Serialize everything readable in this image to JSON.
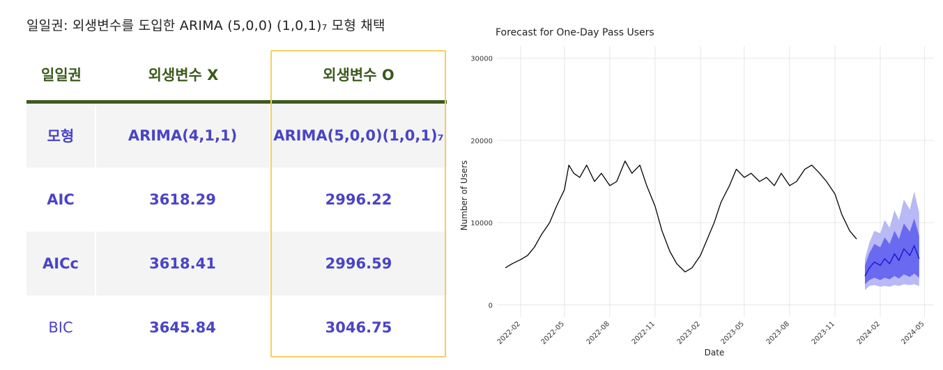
{
  "headline": "일일권: 외생변수를 도입한 ARIMA (5,0,0) (1,0,1)₇ 모형 채택",
  "table": {
    "headers": [
      "일일권",
      "외생변수 X",
      "외생변수 O"
    ],
    "rows": [
      {
        "label": "모형",
        "without": "ARIMA(4,1,1)",
        "with": "ARIMA(5,0,0)(1,0,1)₇"
      },
      {
        "label": "AIC",
        "without": "3618.29",
        "with": "2996.22"
      },
      {
        "label": "AICc",
        "without": "3618.41",
        "with": "2996.59"
      },
      {
        "label": "BIC",
        "without": "3645.84",
        "with": "3046.75"
      }
    ]
  },
  "colors": {
    "header_text": "#3b5a1c",
    "header_rule": "#3e5a1d",
    "value_text": "#4a44c6",
    "highlight_border": "#f2cf63",
    "forecast_line": "#1f1fd6",
    "band_80": "#6a6af0",
    "band_95": "#b9b9f5"
  },
  "chart_data": {
    "type": "line",
    "title": "Forecast for One-Day Pass Users",
    "xlabel": "Date",
    "ylabel": "Number of Users",
    "y_ticks": [
      "0",
      "10000",
      "20000",
      "30000"
    ],
    "x_ticks": [
      "2022-02",
      "2022-05",
      "2022-08",
      "2022-11",
      "2023-02",
      "2023-05",
      "2023-08",
      "2023-11",
      "2024-02",
      "2024-05"
    ],
    "xlim": [
      "2021-12-15",
      "2024-05-20"
    ],
    "ylim": [
      -1500,
      31500
    ],
    "grid": true,
    "series": [
      {
        "role": "history",
        "x": [
          "2022-01-01",
          "2022-01-15",
          "2022-02-01",
          "2022-02-15",
          "2022-03-01",
          "2022-03-15",
          "2022-04-01",
          "2022-04-15",
          "2022-05-01",
          "2022-05-10",
          "2022-05-20",
          "2022-06-01",
          "2022-06-15",
          "2022-07-01",
          "2022-07-15",
          "2022-08-01",
          "2022-08-15",
          "2022-09-01",
          "2022-09-15",
          "2022-10-01",
          "2022-10-15",
          "2022-11-01",
          "2022-11-15",
          "2022-12-01",
          "2022-12-15",
          "2023-01-01",
          "2023-01-15",
          "2023-02-01",
          "2023-02-15",
          "2023-03-01",
          "2023-03-15",
          "2023-04-01",
          "2023-04-15",
          "2023-05-01",
          "2023-05-15",
          "2023-06-01",
          "2023-06-15",
          "2023-07-01",
          "2023-07-15",
          "2023-08-01",
          "2023-08-15",
          "2023-09-01",
          "2023-09-15",
          "2023-10-01",
          "2023-10-15",
          "2023-11-01",
          "2023-11-15",
          "2023-12-01",
          "2023-12-15"
        ],
        "y": [
          4500,
          5000,
          5500,
          6000,
          7000,
          8500,
          10000,
          12000,
          14000,
          17000,
          16000,
          15500,
          17000,
          15000,
          16000,
          14500,
          15000,
          17500,
          16000,
          17000,
          14500,
          12000,
          9000,
          6500,
          5000,
          4000,
          4500,
          6000,
          8000,
          10000,
          12500,
          14500,
          16500,
          15500,
          16000,
          15000,
          15500,
          14500,
          16000,
          14500,
          15000,
          16500,
          17000,
          16000,
          15000,
          13500,
          11000,
          9000,
          8000
        ]
      },
      {
        "name": "forecast",
        "x": [
          "2024-01-01",
          "2024-01-10",
          "2024-01-20",
          "2024-02-01",
          "2024-02-10",
          "2024-02-20",
          "2024-03-01",
          "2024-03-10",
          "2024-03-20",
          "2024-04-01",
          "2024-04-10",
          "2024-04-20"
        ],
        "y": [
          3500,
          4500,
          5200,
          4800,
          5600,
          5000,
          6200,
          5400,
          6800,
          6000,
          7200,
          5600
        ],
        "lo80": [
          2500,
          3000,
          3300,
          3000,
          3300,
          3100,
          3500,
          3200,
          3700,
          3400,
          3800,
          3300
        ],
        "hi80": [
          4800,
          6300,
          7400,
          7000,
          8200,
          7400,
          9000,
          8000,
          9900,
          8900,
          10500,
          8400
        ],
        "lo95": [
          1800,
          2300,
          2400,
          2200,
          2300,
          2200,
          2400,
          2300,
          2500,
          2400,
          2500,
          2300
        ],
        "hi95": [
          5600,
          7600,
          9000,
          8700,
          10300,
          9400,
          11500,
          10300,
          12800,
          11600,
          13800,
          11200
        ]
      }
    ]
  }
}
